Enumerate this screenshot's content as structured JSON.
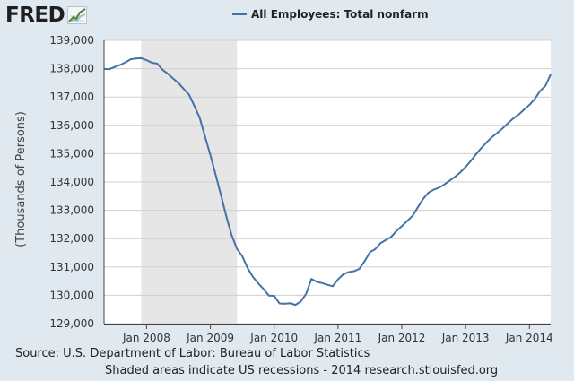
{
  "brand": {
    "logo_text": "FRED",
    "logo_icon": "fred-chart-logo-icon"
  },
  "chart_data": {
    "type": "line",
    "title": "",
    "xlabel": "",
    "ylabel": "(Thousands of Persons)",
    "ylim": [
      129000,
      139000
    ],
    "yticks": [
      129000,
      130000,
      131000,
      132000,
      133000,
      134000,
      135000,
      136000,
      137000,
      138000,
      139000
    ],
    "ytick_labels": [
      "129,000",
      "130,000",
      "131,000",
      "132,000",
      "133,000",
      "134,000",
      "135,000",
      "136,000",
      "137,000",
      "138,000",
      "139,000"
    ],
    "xlim": [
      "2007-05",
      "2014-05"
    ],
    "xticks": [
      "2008-01",
      "2009-01",
      "2010-01",
      "2011-01",
      "2012-01",
      "2013-01",
      "2014-01"
    ],
    "xtick_labels": [
      "Jan 2008",
      "Jan 2009",
      "Jan 2010",
      "Jan 2011",
      "Jan 2012",
      "Jan 2013",
      "Jan 2014"
    ],
    "recession": {
      "start": "2007-12",
      "end": "2009-06",
      "color": "#e6e6e6"
    },
    "grid": true,
    "legend_position": "top-center",
    "series": [
      {
        "name": "All Employees: Total nonfarm",
        "color": "#4572a7",
        "x": [
          "2007-05",
          "2007-06",
          "2007-07",
          "2007-08",
          "2007-09",
          "2007-10",
          "2007-11",
          "2007-12",
          "2008-01",
          "2008-02",
          "2008-03",
          "2008-04",
          "2008-05",
          "2008-06",
          "2008-07",
          "2008-08",
          "2008-09",
          "2008-10",
          "2008-11",
          "2008-12",
          "2009-01",
          "2009-02",
          "2009-03",
          "2009-04",
          "2009-05",
          "2009-06",
          "2009-07",
          "2009-08",
          "2009-09",
          "2009-10",
          "2009-11",
          "2009-12",
          "2010-01",
          "2010-02",
          "2010-03",
          "2010-04",
          "2010-05",
          "2010-06",
          "2010-07",
          "2010-08",
          "2010-09",
          "2010-10",
          "2010-11",
          "2010-12",
          "2011-01",
          "2011-02",
          "2011-03",
          "2011-04",
          "2011-05",
          "2011-06",
          "2011-07",
          "2011-08",
          "2011-09",
          "2011-10",
          "2011-11",
          "2011-12",
          "2012-01",
          "2012-02",
          "2012-03",
          "2012-04",
          "2012-05",
          "2012-06",
          "2012-07",
          "2012-08",
          "2012-09",
          "2012-10",
          "2012-11",
          "2012-12",
          "2013-01",
          "2013-02",
          "2013-03",
          "2013-04",
          "2013-05",
          "2013-06",
          "2013-07",
          "2013-08",
          "2013-09",
          "2013-10",
          "2013-11",
          "2013-12",
          "2014-01",
          "2014-02",
          "2014-03",
          "2014-04",
          "2014-05"
        ],
        "values": [
          137990,
          137980,
          138060,
          138130,
          138220,
          138330,
          138360,
          138370,
          138300,
          138210,
          138180,
          137960,
          137820,
          137650,
          137490,
          137280,
          137080,
          136680,
          136260,
          135600,
          134950,
          134250,
          133530,
          132780,
          132120,
          131640,
          131380,
          130960,
          130650,
          130420,
          130220,
          129990,
          129980,
          129710,
          129700,
          129720,
          129660,
          129780,
          130050,
          130580,
          130480,
          130430,
          130370,
          130320,
          130560,
          130740,
          130820,
          130850,
          130930,
          131200,
          131520,
          131630,
          131840,
          131950,
          132060,
          132270,
          132440,
          132620,
          132800,
          133100,
          133400,
          133620,
          133730,
          133800,
          133910,
          134050,
          134180,
          134340,
          134530,
          134750,
          134990,
          135210,
          135410,
          135590,
          135740,
          135900,
          136080,
          136250,
          136380,
          136560,
          136720,
          136930,
          137210,
          137390,
          137800
        ]
      }
    ]
  },
  "footer": {
    "source": "Source: U.S. Department of Labor: Bureau of Labor Statistics",
    "note": "Shaded areas indicate US recessions - 2014 research.stlouisfed.org"
  }
}
